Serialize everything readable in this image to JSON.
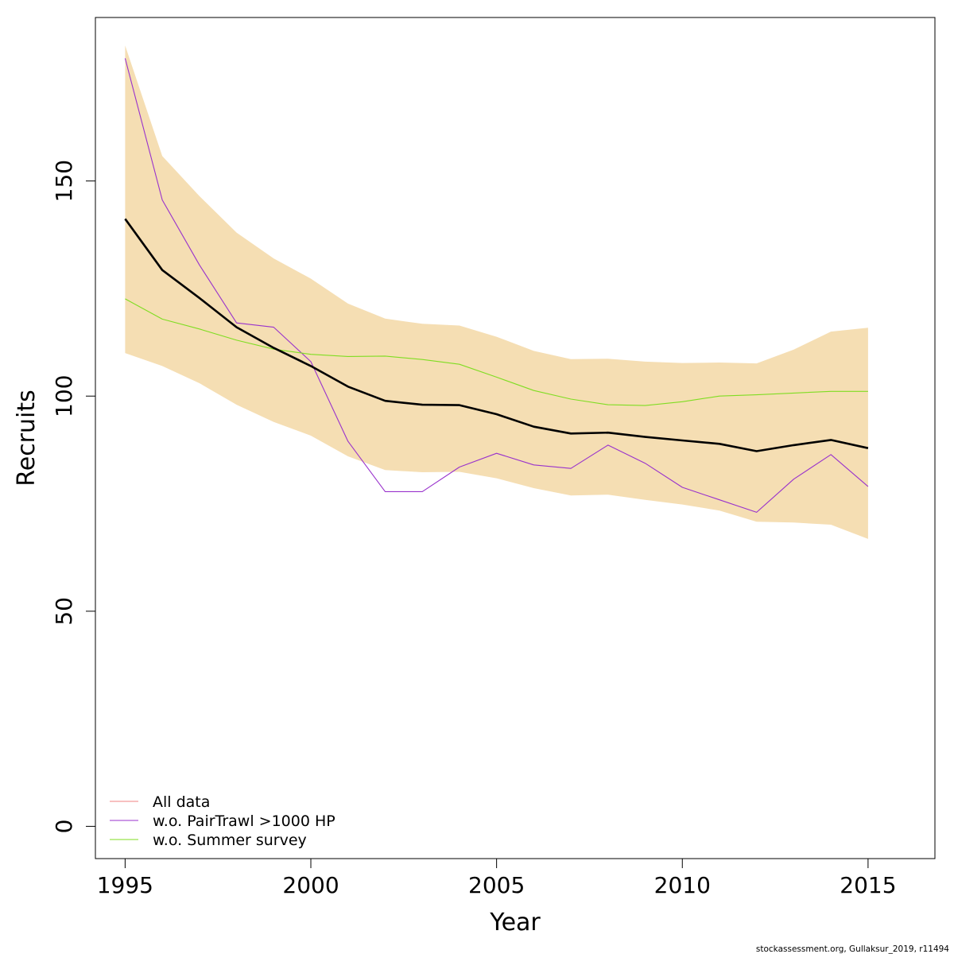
{
  "chart_data": {
    "type": "line",
    "xlabel": "Year",
    "ylabel": "Recruits",
    "xlim": [
      1994.2,
      2016.8
    ],
    "ylim": [
      -7.5,
      188
    ],
    "x_ticks": [
      1995,
      2000,
      2005,
      2010,
      2015
    ],
    "y_ticks": [
      0,
      50,
      100,
      150
    ],
    "grid": false,
    "legend_position": "bottom-left",
    "x": [
      1995,
      1996,
      1997,
      1998,
      1999,
      2000,
      2001,
      2002,
      2003,
      2004,
      2005,
      2006,
      2007,
      2008,
      2009,
      2010,
      2011,
      2012,
      2013,
      2014,
      2015
    ],
    "band": {
      "color": "#f5deb3",
      "upper": [
        181.5,
        155.8,
        146.5,
        138.0,
        132.0,
        127.3,
        121.5,
        118.0,
        116.8,
        116.4,
        113.8,
        110.5,
        108.6,
        108.7,
        108.0,
        107.7,
        107.8,
        107.6,
        110.8,
        115.0,
        115.9
      ],
      "lower": [
        110.0,
        107.0,
        103.0,
        98.0,
        94.0,
        90.8,
        86.0,
        82.8,
        82.3,
        82.4,
        80.9,
        78.6,
        76.9,
        77.1,
        75.9,
        74.8,
        73.4,
        70.8,
        70.6,
        70.1,
        66.8
      ]
    },
    "series": [
      {
        "name": "All data",
        "color": "#000000",
        "line_width": 2.6,
        "values": [
          141.2,
          129.3,
          122.8,
          116.0,
          111.2,
          107.0,
          102.2,
          98.9,
          98.0,
          97.9,
          95.8,
          92.9,
          91.3,
          91.5,
          90.5,
          89.7,
          88.9,
          87.2,
          88.6,
          89.8,
          87.9
        ]
      },
      {
        "name": "w.o. PairTrawl >1000 HP",
        "color": "#9932cc",
        "line_width": 1.1,
        "values": [
          178.5,
          145.6,
          130.5,
          117.0,
          116.0,
          108.0,
          89.5,
          77.8,
          77.8,
          83.5,
          86.7,
          84.0,
          83.2,
          88.6,
          84.4,
          78.8,
          75.9,
          73.0,
          80.7,
          86.4,
          79.0
        ]
      },
      {
        "name": "w.o. Summer survey",
        "color": "#7fdd22",
        "line_width": 1.1,
        "values": [
          122.6,
          117.9,
          115.6,
          113.0,
          110.9,
          109.7,
          109.2,
          109.3,
          108.5,
          107.4,
          104.4,
          101.3,
          99.3,
          98.0,
          97.8,
          98.7,
          100.0,
          100.3,
          100.7,
          101.1,
          101.1
        ]
      }
    ],
    "legend": [
      {
        "label": "All data",
        "color": "#f08080"
      },
      {
        "label": "w.o. PairTrawl >1000 HP",
        "color": "#9932cc"
      },
      {
        "label": "w.o. Summer survey",
        "color": "#7fdd22"
      }
    ]
  },
  "footer": {
    "credit": "stockassessment.org, Gullaksur_2019, r11494"
  }
}
